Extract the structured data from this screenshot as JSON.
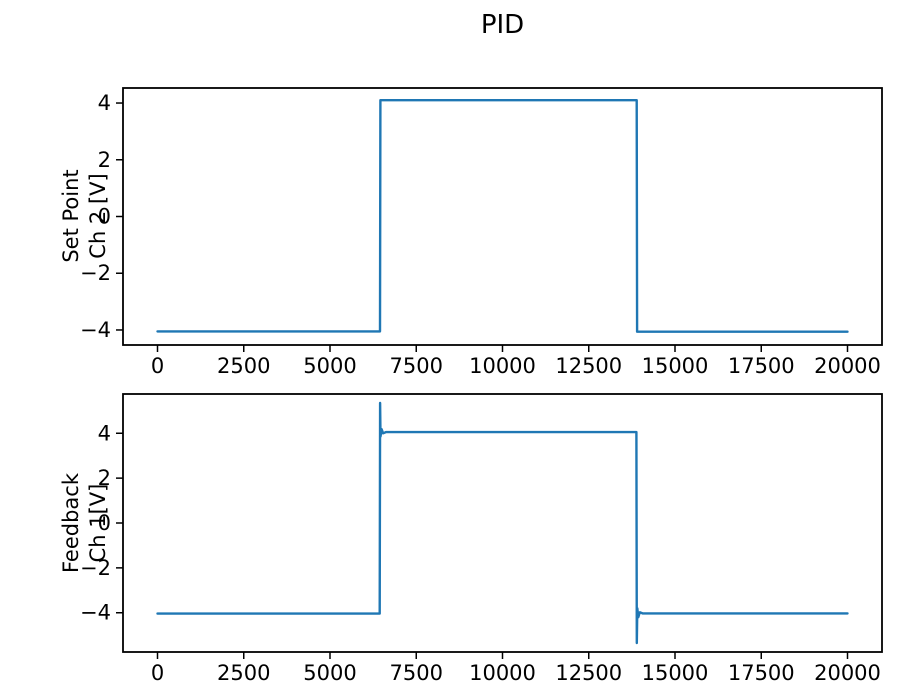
{
  "figure": {
    "title": "PID",
    "line_color": "#1f77b4",
    "background_color": "#ffffff",
    "spine_color": "#000000",
    "text_color": "#000000"
  },
  "chart_data": [
    {
      "type": "line",
      "id": "setpoint",
      "ylabel": "Set Point\nCh 2 [V]",
      "xlabel": "",
      "x_ticks": [
        0,
        2500,
        5000,
        7500,
        10000,
        12500,
        15000,
        17500,
        20000
      ],
      "y_ticks": [
        -4,
        -2,
        0,
        2,
        4
      ],
      "xlim": [
        -1000,
        21000
      ],
      "ylim": [
        -4.53,
        4.53
      ],
      "grid": false,
      "legend": "none",
      "x": [
        0,
        6450,
        6460,
        13890,
        13900,
        20000
      ],
      "y": [
        -4.05,
        -4.05,
        4.1,
        4.1,
        -4.06,
        -4.06
      ]
    },
    {
      "type": "line",
      "id": "feedback",
      "ylabel": "Feedback\nCh 1[V]",
      "xlabel": "",
      "x_ticks": [
        0,
        2500,
        5000,
        7500,
        10000,
        12500,
        15000,
        17500,
        20000
      ],
      "y_ticks": [
        -4,
        -2,
        0,
        2,
        4
      ],
      "xlim": [
        -1000,
        21000
      ],
      "ylim": [
        -5.75,
        5.75
      ],
      "grid": false,
      "legend": "none",
      "x": [
        0,
        6440,
        6452,
        6465,
        6495,
        6540,
        6620,
        13880,
        13892,
        13906,
        13935,
        13980,
        14060,
        20000
      ],
      "y": [
        -4.04,
        -4.04,
        5.35,
        3.85,
        4.18,
        4.0,
        4.05,
        4.05,
        -5.35,
        -3.8,
        -4.2,
        -3.98,
        -4.03,
        -4.03
      ]
    }
  ]
}
